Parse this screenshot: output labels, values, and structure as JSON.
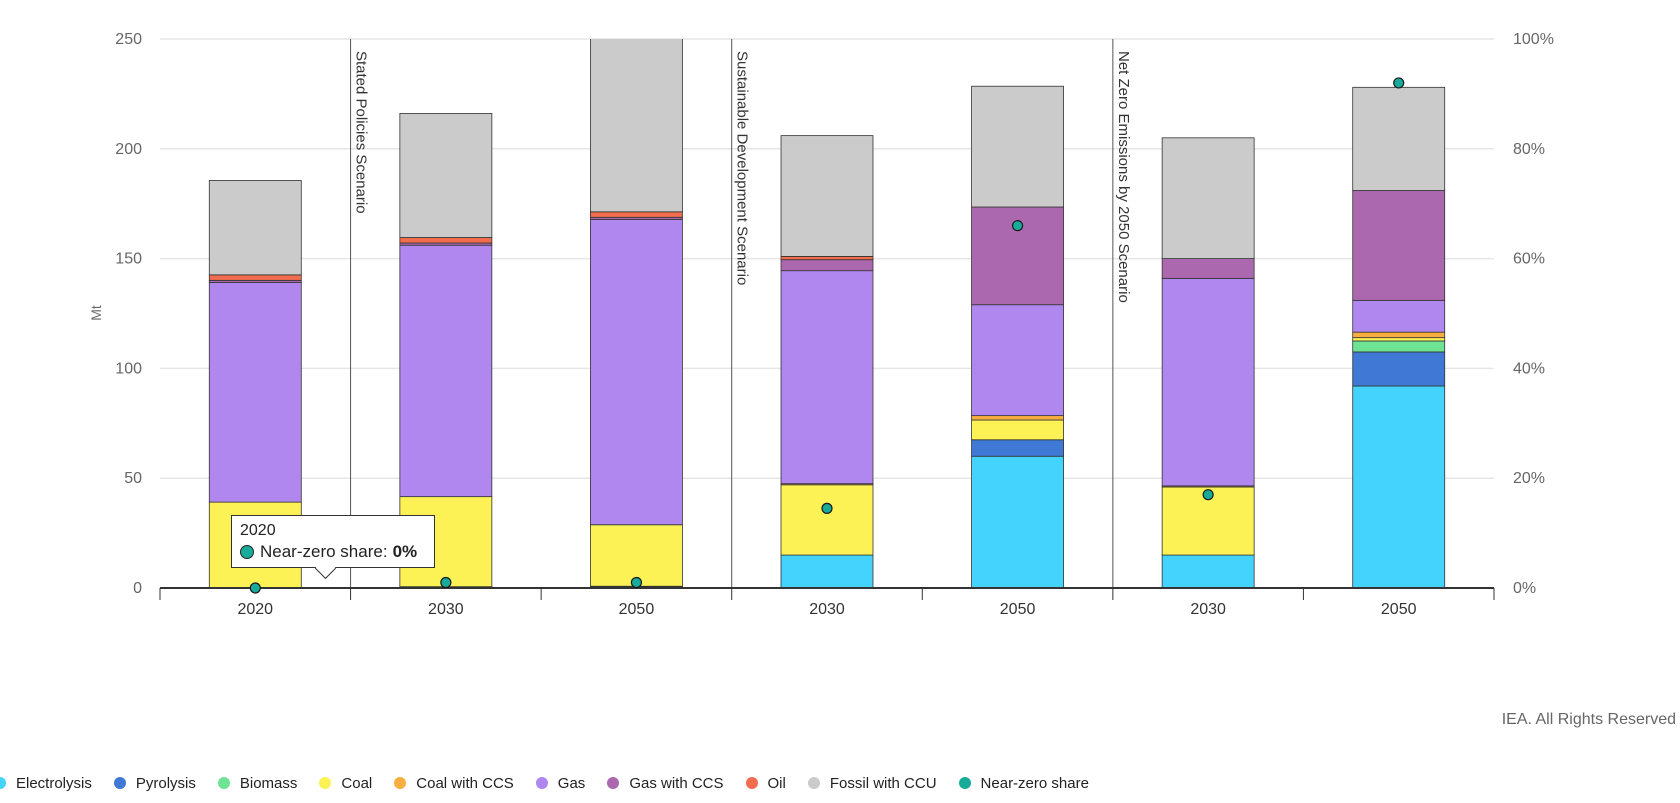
{
  "chart_data": {
    "type": "bar",
    "stacked": true,
    "ylabel": "Mt",
    "ylim": [
      0,
      250
    ],
    "yticks": [
      "0",
      "50",
      "100",
      "150",
      "200",
      "250"
    ],
    "y2lim": [
      0,
      100
    ],
    "y2ticks": [
      "0%",
      "20%",
      "40%",
      "60%",
      "80%",
      "100%"
    ],
    "groups": [
      {
        "label": "",
        "bars": [
          "2020"
        ]
      },
      {
        "label": "Stated Policies Scenario",
        "bars": [
          "2030",
          "2050"
        ]
      },
      {
        "label": "Sustainable Development Scenario",
        "bars": [
          "2030",
          "2050"
        ]
      },
      {
        "label": "Net Zero Emissions by 2050 Scenario",
        "bars": [
          "2030",
          "2050"
        ]
      }
    ],
    "categories": [
      "2020",
      "2030",
      "2050",
      "2030",
      "2050",
      "2030",
      "2050"
    ],
    "series": [
      {
        "name": "Electrolysis",
        "color": "#44d3fc",
        "values": [
          0.1,
          0.3,
          0.5,
          15,
          60,
          15,
          92
        ]
      },
      {
        "name": "Pyrolysis",
        "color": "#3f79d5",
        "values": [
          0,
          0,
          0,
          0,
          7.5,
          0,
          15.5
        ]
      },
      {
        "name": "Biomass",
        "color": "#6fe394",
        "values": [
          0,
          0.3,
          0.3,
          0,
          0,
          0,
          5
        ]
      },
      {
        "name": "Coal",
        "color": "#fcf155",
        "values": [
          39,
          41,
          28,
          32,
          9,
          31,
          1.5
        ]
      },
      {
        "name": "Coal with CCS",
        "color": "#f7ae3e",
        "values": [
          0,
          0,
          0,
          0.5,
          2,
          0.5,
          2.5
        ]
      },
      {
        "name": "Gas",
        "color": "#b086ef",
        "values": [
          100,
          114.5,
          139,
          97,
          50.5,
          94.5,
          14.5
        ]
      },
      {
        "name": "Gas with CCS",
        "color": "#ab68ae",
        "values": [
          1,
          1,
          1,
          5,
          44.5,
          9,
          50
        ]
      },
      {
        "name": "Oil",
        "color": "#f26d4d",
        "values": [
          2.5,
          2.5,
          2.5,
          1.5,
          0,
          0,
          0
        ]
      },
      {
        "name": "Fossil with CCU",
        "color": "#cbcbcb",
        "values": [
          43,
          56.5,
          80,
          55,
          55,
          55,
          47
        ]
      }
    ],
    "near_zero_share": {
      "name": "Near-zero share",
      "color": "#19ab9a",
      "unit": "%",
      "values": [
        0,
        1,
        1,
        14.5,
        66,
        17,
        92
      ]
    }
  },
  "tooltip": {
    "year": "2020",
    "label": "Near-zero share:",
    "value": "0%"
  },
  "credit": "IEA. All Rights Reserved",
  "legend": [
    {
      "label": "Electrolysis",
      "color": "#44d3fc"
    },
    {
      "label": "Pyrolysis",
      "color": "#3f79d5"
    },
    {
      "label": "Biomass",
      "color": "#6fe394"
    },
    {
      "label": "Coal",
      "color": "#fcf155"
    },
    {
      "label": "Coal with CCS",
      "color": "#f7ae3e"
    },
    {
      "label": "Gas",
      "color": "#b086ef"
    },
    {
      "label": "Gas with CCS",
      "color": "#ab68ae"
    },
    {
      "label": "Oil",
      "color": "#f26d4d"
    },
    {
      "label": "Fossil with CCU",
      "color": "#cbcbcb"
    },
    {
      "label": "Near-zero share",
      "color": "#19ab9a"
    }
  ]
}
